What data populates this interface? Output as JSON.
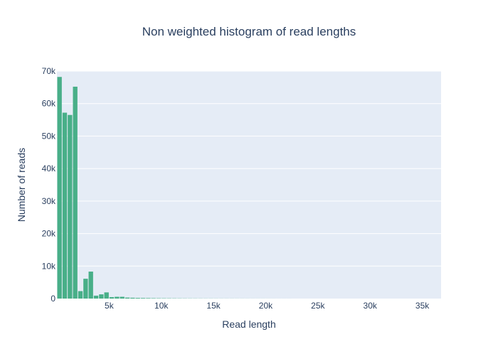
{
  "chart_data": {
    "type": "bar",
    "title": "Non weighted histogram of read lengths",
    "xlabel": "Read length",
    "ylabel": "Number of reads",
    "xlim": [
      0,
      36800
    ],
    "ylim": [
      0,
      70000
    ],
    "bin_width": 500,
    "x_ticks": [
      5000,
      10000,
      15000,
      20000,
      25000,
      30000,
      35000
    ],
    "x_tick_labels": [
      "5k",
      "10k",
      "15k",
      "20k",
      "25k",
      "30k",
      "35k"
    ],
    "y_ticks": [
      0,
      10000,
      20000,
      30000,
      40000,
      50000,
      60000,
      70000
    ],
    "y_tick_labels": [
      "0",
      "10k",
      "20k",
      "30k",
      "40k",
      "50k",
      "60k",
      "70k"
    ],
    "grid": true,
    "legend": "none",
    "x": [
      0,
      500,
      1000,
      1500,
      2000,
      2500,
      3000,
      3500,
      4000,
      4500,
      5000,
      5500,
      6000,
      6500,
      7000,
      7500,
      8000,
      8500,
      9000,
      9500,
      10000,
      10500,
      11000,
      11500,
      12000,
      12500,
      13000,
      13500,
      14000,
      14500,
      15000,
      15500,
      16000,
      16500,
      17000,
      17500,
      18000,
      18500,
      19000,
      19500,
      20000,
      20500,
      21000,
      21500,
      22000
    ],
    "values": [
      68200,
      57200,
      56500,
      65200,
      2300,
      6100,
      8300,
      900,
      1300,
      1900,
      450,
      550,
      550,
      300,
      250,
      200,
      180,
      150,
      120,
      100,
      90,
      80,
      70,
      60,
      50,
      45,
      40,
      35,
      30,
      28,
      25,
      22,
      20,
      18,
      16,
      14,
      12,
      10,
      9,
      8,
      7,
      6,
      5,
      4,
      3
    ],
    "colors": {
      "bar": "#48af88",
      "plot_background": "#e5ecf6",
      "grid": "#ffffff",
      "text": "#2a3f5f"
    }
  }
}
